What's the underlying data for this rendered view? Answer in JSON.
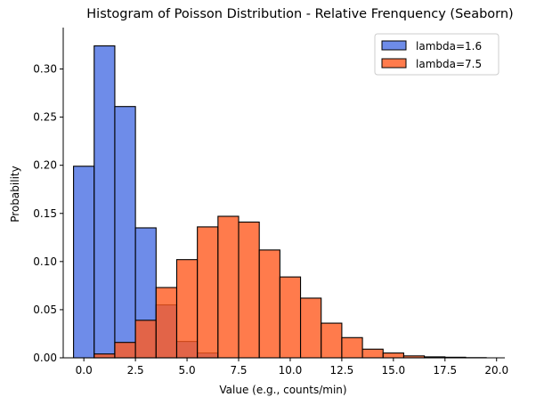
{
  "chart_data": {
    "type": "bar",
    "title": "Histogram of Poisson Distribution - Relative Frenquency (Seaborn)",
    "xlabel": "Value (e.g., counts/min)",
    "ylabel": "Probability",
    "xlim": [
      -1.0,
      20.4
    ],
    "ylim": [
      0,
      0.343
    ],
    "xticks": [
      0.0,
      2.5,
      5.0,
      7.5,
      10.0,
      12.5,
      15.0,
      17.5,
      20.0
    ],
    "xtick_labels": [
      "0.0",
      "2.5",
      "5.0",
      "7.5",
      "10.0",
      "12.5",
      "15.0",
      "17.5",
      "20.0"
    ],
    "yticks": [
      0.0,
      0.05,
      0.1,
      0.15,
      0.2,
      0.25,
      0.3
    ],
    "ytick_labels": [
      "0.00",
      "0.05",
      "0.10",
      "0.15",
      "0.20",
      "0.25",
      "0.30"
    ],
    "legend_position": "top-right",
    "grid": false,
    "series": [
      {
        "name": "lambda=1.6",
        "color": "#4a6fe3",
        "bins": [
          {
            "x0": -0.5,
            "x1": 0.5,
            "value": 0.199
          },
          {
            "x0": 0.5,
            "x1": 1.5,
            "value": 0.324
          },
          {
            "x0": 1.5,
            "x1": 2.5,
            "value": 0.261
          },
          {
            "x0": 2.5,
            "x1": 3.5,
            "value": 0.135
          },
          {
            "x0": 3.5,
            "x1": 4.5,
            "value": 0.055
          },
          {
            "x0": 4.5,
            "x1": 5.5,
            "value": 0.017
          },
          {
            "x0": 5.5,
            "x1": 6.5,
            "value": 0.005
          }
        ]
      },
      {
        "name": "lambda=7.5",
        "color": "#ff5a1f",
        "bins": [
          {
            "x0": 0.5,
            "x1": 1.5,
            "value": 0.004
          },
          {
            "x0": 1.5,
            "x1": 2.5,
            "value": 0.016
          },
          {
            "x0": 2.5,
            "x1": 3.5,
            "value": 0.039
          },
          {
            "x0": 3.5,
            "x1": 4.5,
            "value": 0.073
          },
          {
            "x0": 4.5,
            "x1": 5.5,
            "value": 0.102
          },
          {
            "x0": 5.5,
            "x1": 6.5,
            "value": 0.136
          },
          {
            "x0": 6.5,
            "x1": 7.5,
            "value": 0.147
          },
          {
            "x0": 7.5,
            "x1": 8.5,
            "value": 0.141
          },
          {
            "x0": 8.5,
            "x1": 9.5,
            "value": 0.112
          },
          {
            "x0": 9.5,
            "x1": 10.5,
            "value": 0.084
          },
          {
            "x0": 10.5,
            "x1": 11.5,
            "value": 0.062
          },
          {
            "x0": 11.5,
            "x1": 12.5,
            "value": 0.036
          },
          {
            "x0": 12.5,
            "x1": 13.5,
            "value": 0.021
          },
          {
            "x0": 13.5,
            "x1": 14.5,
            "value": 0.009
          },
          {
            "x0": 14.5,
            "x1": 15.5,
            "value": 0.005
          },
          {
            "x0": 15.5,
            "x1": 16.5,
            "value": 0.002
          },
          {
            "x0": 16.5,
            "x1": 17.5,
            "value": 0.001
          },
          {
            "x0": 17.5,
            "x1": 18.5,
            "value": 0.0006
          },
          {
            "x0": 18.5,
            "x1": 19.5,
            "value": 0.0002
          }
        ]
      }
    ]
  }
}
